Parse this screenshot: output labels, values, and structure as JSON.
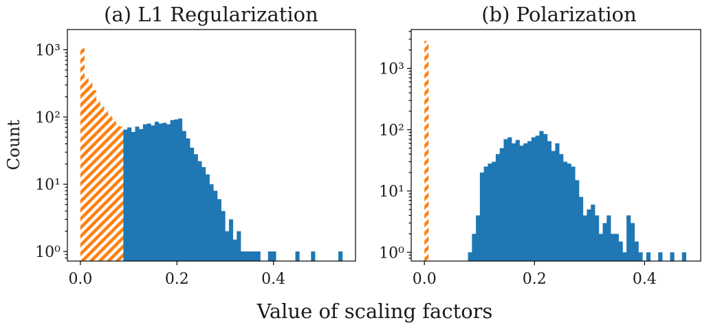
{
  "figure": {
    "xlabel": "Value of scaling factors",
    "pruned_color": "#ff7f0e",
    "kept_color": "#1f77b4"
  },
  "chart_data": [
    {
      "type": "bar",
      "title": "(a) L1 Regularization",
      "xlabel": "",
      "ylabel": "Count",
      "yscale": "log",
      "xlim": [
        -0.027,
        0.57
      ],
      "ylim": [
        0.72,
        2000
      ],
      "xticks": [
        0.0,
        0.2,
        0.4
      ],
      "xtick_labels": [
        "0.0",
        "0.2",
        "0.4"
      ],
      "yticks": [
        1,
        10,
        100,
        1000
      ],
      "ytick_labels": [
        "10⁰",
        "10¹",
        "10²",
        "10³"
      ],
      "bin_width": 0.0081,
      "series": [
        {
          "style": "orange-hatched",
          "x": [
            0.004,
            0.0121,
            0.0202,
            0.0283,
            0.0364,
            0.0445,
            0.0526,
            0.0607,
            0.0688,
            0.0769,
            0.085
          ],
          "values": [
            1050,
            400,
            330,
            250,
            180,
            150,
            125,
            110,
            95,
            80,
            72
          ]
        },
        {
          "style": "blue-solid",
          "x": [
            0.0931,
            0.1012,
            0.1093,
            0.1174,
            0.1255,
            0.1336,
            0.1417,
            0.1498,
            0.1579,
            0.166,
            0.1741,
            0.1822,
            0.1903,
            0.1984,
            0.2065,
            0.2146,
            0.2227,
            0.2308,
            0.2389,
            0.247,
            0.2551,
            0.2632,
            0.2713,
            0.2794,
            0.2875,
            0.2956,
            0.3037,
            0.3118,
            0.3199,
            0.328,
            0.3361,
            0.3442,
            0.3523,
            0.3604,
            0.3685,
            0.3928,
            0.4009,
            0.4495,
            0.4819,
            0.5386
          ],
          "values": [
            65,
            70,
            60,
            72,
            66,
            78,
            80,
            75,
            85,
            80,
            82,
            78,
            90,
            92,
            95,
            62,
            48,
            35,
            28,
            22,
            18,
            14,
            10,
            8,
            6,
            4,
            2,
            3,
            1.5,
            2,
            1,
            1,
            1,
            1,
            1,
            1,
            1,
            1,
            1,
            1
          ]
        }
      ]
    },
    {
      "type": "bar",
      "title": "(b) Polarization",
      "xlabel": "",
      "ylabel": "",
      "yscale": "log",
      "xlim": [
        -0.024,
        0.502
      ],
      "ylim": [
        0.72,
        4300
      ],
      "xticks": [
        0.0,
        0.2,
        0.4
      ],
      "xtick_labels": [
        "0.0",
        "0.2",
        "0.4"
      ],
      "yticks": [
        1,
        10,
        100,
        1000
      ],
      "ytick_labels": [
        "10⁰",
        "10¹",
        "10²",
        "10³"
      ],
      "bin_width": 0.0072,
      "series": [
        {
          "style": "orange-hatched",
          "x": [
            0.0036
          ],
          "values": [
            2800
          ]
        },
        {
          "style": "blue-solid",
          "x": [
            0.0828,
            0.09,
            0.0972,
            0.1044,
            0.1116,
            0.1188,
            0.126,
            0.1332,
            0.1404,
            0.1476,
            0.1548,
            0.162,
            0.1692,
            0.1764,
            0.1836,
            0.1908,
            0.198,
            0.2052,
            0.2124,
            0.2196,
            0.2268,
            0.234,
            0.2412,
            0.2484,
            0.2556,
            0.2628,
            0.27,
            0.2772,
            0.2844,
            0.2916,
            0.2988,
            0.306,
            0.3132,
            0.3204,
            0.3276,
            0.3348,
            0.342,
            0.3492,
            0.3564,
            0.3636,
            0.3708,
            0.378,
            0.3852,
            0.3924,
            0.4068,
            0.4284,
            0.45,
            0.4716
          ],
          "values": [
            1,
            2,
            4,
            20,
            25,
            28,
            30,
            40,
            50,
            70,
            75,
            60,
            68,
            55,
            60,
            65,
            75,
            80,
            95,
            85,
            65,
            45,
            60,
            40,
            30,
            28,
            25,
            15,
            8,
            4,
            5,
            6,
            4,
            2,
            3,
            4,
            2,
            2,
            1.5,
            1,
            4,
            3,
            1.5,
            1,
            1,
            1,
            1,
            1
          ]
        }
      ]
    }
  ]
}
